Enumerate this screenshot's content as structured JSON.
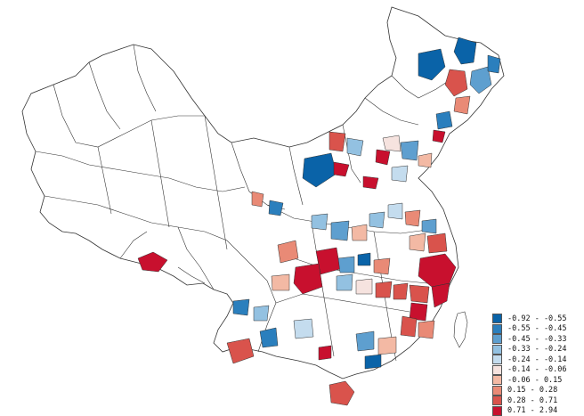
{
  "legend": {
    "classes": [
      {
        "label": "-0.92 - -0.55",
        "color": "#0a63a8"
      },
      {
        "label": "-0.55 - -0.45",
        "color": "#2b7fbd"
      },
      {
        "label": "-0.45 - -0.33",
        "color": "#5e9fcf"
      },
      {
        "label": "-0.33 - -0.24",
        "color": "#93c1e1"
      },
      {
        "label": "-0.24 - -0.14",
        "color": "#c4dcee"
      },
      {
        "label": "-0.14 - -0.06",
        "color": "#f6e3df"
      },
      {
        "label": "-0.06 - 0.15",
        "color": "#f3b9a4"
      },
      {
        "label": "0.15 - 0.28",
        "color": "#e98a76"
      },
      {
        "label": "0.28 - 0.71",
        "color": "#d9534c"
      },
      {
        "label": "0.71 - 2.94",
        "color": "#c8102e"
      }
    ]
  },
  "map": {
    "no_data_color": "#ffffff",
    "boundary_color": "#333333"
  }
}
